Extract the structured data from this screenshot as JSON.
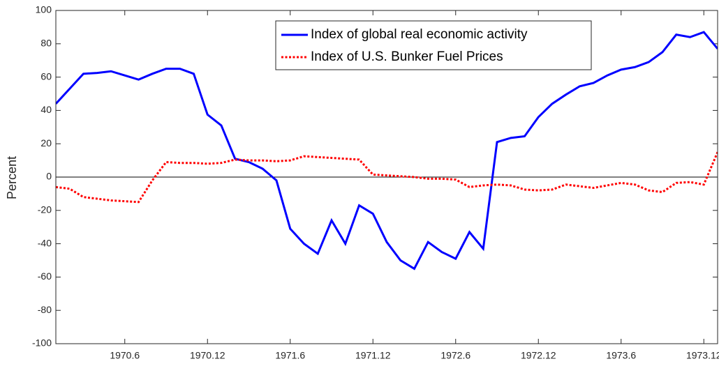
{
  "chart_data": {
    "type": "line",
    "y_label": "Percent",
    "categories": [
      null,
      null,
      null,
      null,
      null,
      "1970.6",
      null,
      null,
      null,
      null,
      null,
      "1970.12",
      null,
      null,
      null,
      null,
      null,
      "1971.6",
      null,
      null,
      null,
      null,
      null,
      "1971.12",
      null,
      null,
      null,
      null,
      null,
      "1972.6",
      null,
      null,
      null,
      null,
      null,
      "1972.12",
      null,
      null,
      null,
      null,
      null,
      "1973.6",
      null,
      null,
      null,
      null,
      null,
      "1973.12",
      null
    ],
    "series": [
      {
        "name": "Index of global real economic activity",
        "color": "#0000ff",
        "line_style": "solid",
        "values": [
          44,
          53,
          62,
          62.5,
          63.5,
          61,
          58.5,
          62,
          65,
          65,
          62,
          37.5,
          31,
          11,
          9,
          5,
          -2,
          -31,
          -40,
          -46,
          -26,
          -40,
          -17,
          -22,
          -39,
          -50,
          -55,
          -39,
          -45,
          -49,
          -33,
          -43,
          21,
          23.5,
          24.5,
          36,
          44,
          49.5,
          54.5,
          56.5,
          61,
          64.5,
          66,
          69,
          75,
          85.5,
          84,
          87,
          77
        ]
      },
      {
        "name": "Index of U.S. Bunker Fuel Prices",
        "color": "#ff0000",
        "line_style": "dotted",
        "values": [
          -6,
          -7,
          -12,
          -13,
          -14,
          -14.5,
          -15,
          -2,
          9,
          8.5,
          8.5,
          8,
          8.5,
          10.5,
          10,
          10,
          9.5,
          10,
          12.5,
          12,
          11.5,
          11,
          10.5,
          1.5,
          1,
          0.5,
          0,
          -1,
          -1,
          -1.5,
          -6,
          -5,
          -4.5,
          -5,
          -7.5,
          -8,
          -7.5,
          -4.5,
          -5.5,
          -6.5,
          -5,
          -3.5,
          -4.5,
          -8,
          -9,
          -3.5,
          -3,
          -4.5,
          15
        ]
      }
    ],
    "ylim": [
      -100,
      100
    ],
    "yticks": [
      -100,
      -80,
      -60,
      -40,
      -20,
      0,
      20,
      40,
      60,
      80,
      100
    ],
    "zero_line": true,
    "grid": false,
    "legend": "top-center"
  }
}
